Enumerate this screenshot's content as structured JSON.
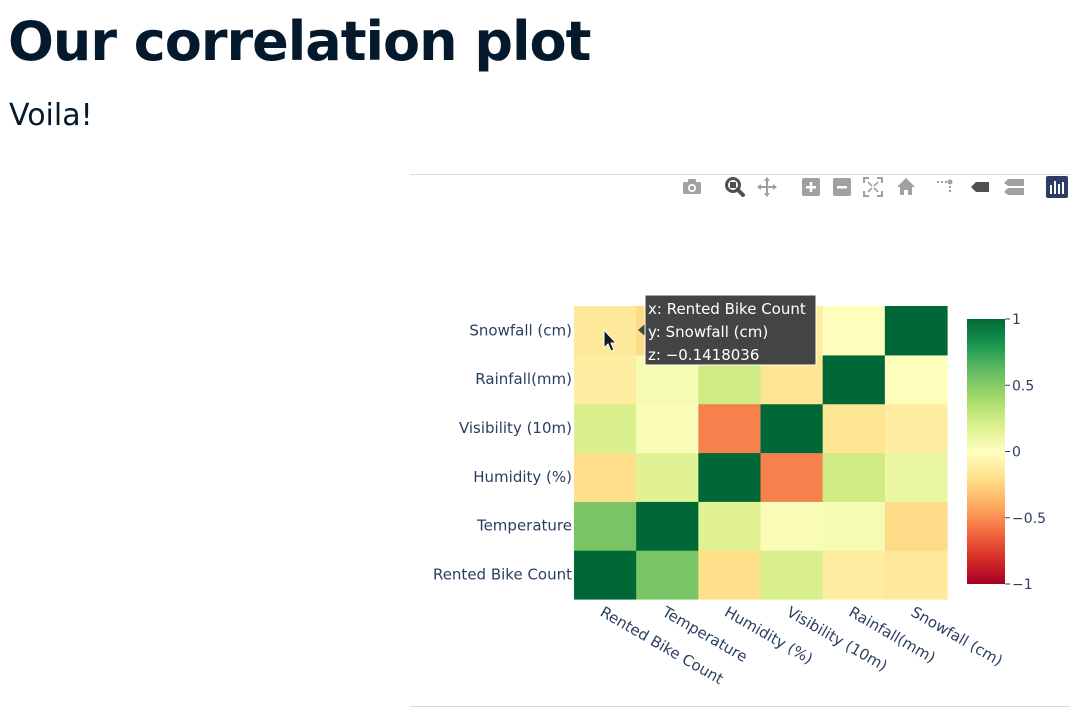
{
  "slide": {
    "title": "Our correlation plot",
    "text": "Voila!"
  },
  "modebar": {
    "buttons": [
      {
        "name": "camera-icon",
        "color": "#a0a0a0"
      },
      {
        "name": "zoom-icon",
        "color": "#505050"
      },
      {
        "name": "pan-icon",
        "color": "#a0a0a0"
      },
      {
        "name": "zoom-in-icon",
        "color": "#a0a0a0"
      },
      {
        "name": "zoom-out-icon",
        "color": "#a0a0a0"
      },
      {
        "name": "autoscale-icon",
        "color": "#a0a0a0"
      },
      {
        "name": "home-icon",
        "color": "#a0a0a0"
      },
      {
        "name": "spike-lines-icon",
        "color": "#a0a0a0"
      },
      {
        "name": "hover-closest-icon",
        "color": "#505050"
      },
      {
        "name": "hover-compare-icon",
        "color": "#a0a0a0"
      },
      {
        "name": "plotly-logo-icon",
        "color": "#2d3d66"
      }
    ]
  },
  "chart_data": {
    "type": "heatmap",
    "labels": [
      "Rented Bike Count",
      "Temperature",
      "Humidity (%)",
      "Visibility (10m)",
      "Rainfall(mm)",
      "Snowfall (cm)"
    ],
    "z": [
      [
        1.0,
        0.54,
        -0.2,
        0.2,
        -0.12,
        -0.14
      ],
      [
        0.54,
        1.0,
        0.16,
        0.03,
        0.05,
        -0.22
      ],
      [
        -0.2,
        0.16,
        1.0,
        -0.54,
        0.24,
        0.11
      ],
      [
        0.2,
        0.03,
        -0.54,
        1.0,
        -0.17,
        -0.12
      ],
      [
        -0.12,
        0.05,
        0.24,
        -0.17,
        1.0,
        0.01
      ],
      [
        -0.1418036,
        -0.22,
        0.11,
        -0.12,
        0.01,
        1.0
      ]
    ],
    "colorscale": "RdYlGn",
    "zmin": -1,
    "zmax": 1,
    "colorbar_ticks": [
      "1",
      "0.5",
      "0",
      "−0.5",
      "−1"
    ],
    "tooltip": {
      "x": "x: Rented Bike Count",
      "y": "y: Snowfall (cm)",
      "z": "z: −0.1418036"
    }
  }
}
